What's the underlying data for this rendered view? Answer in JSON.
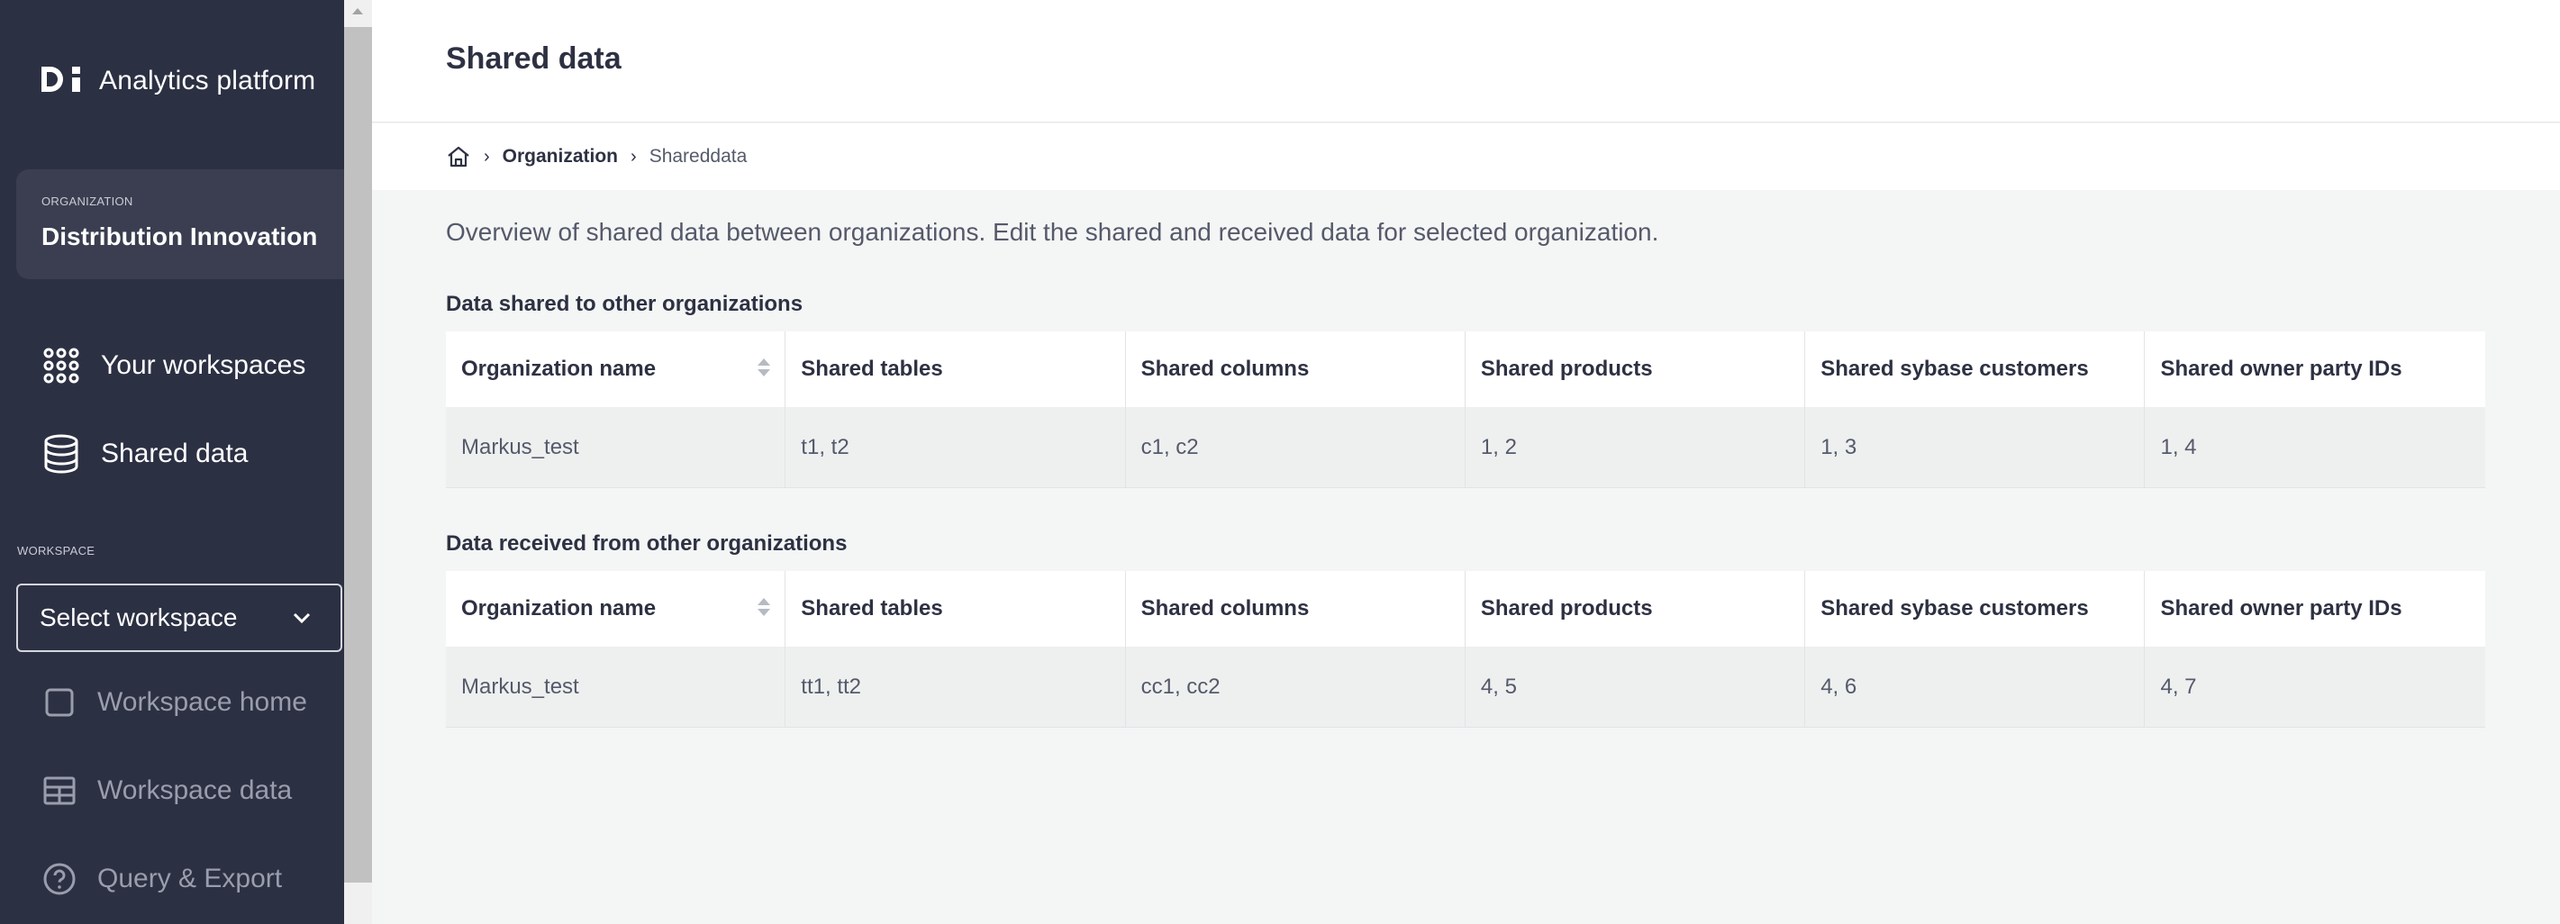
{
  "sidebar": {
    "brand": "Analytics platform",
    "org_caption": "ORGANIZATION",
    "org_name": "Distribution Innovation",
    "nav": [
      {
        "label": "Your workspaces",
        "icon": "grid-icon"
      },
      {
        "label": "Shared data",
        "icon": "database-icon"
      }
    ],
    "workspace_caption": "WORKSPACE",
    "workspace_select": "Select workspace",
    "workspace_nav": [
      {
        "label": "Workspace home",
        "icon": "square-icon"
      },
      {
        "label": "Workspace data",
        "icon": "table-icon"
      },
      {
        "label": "Query & Export",
        "icon": "help-circle-icon"
      }
    ]
  },
  "header": {
    "title": "Shared data"
  },
  "breadcrumb": {
    "org": "Organization",
    "current": "Shareddata"
  },
  "intro": "Overview of shared data between organizations. Edit the shared and received data for selected organization.",
  "columns": [
    "Organization name",
    "Shared tables",
    "Shared columns",
    "Shared products",
    "Shared sybase customers",
    "Shared owner party IDs"
  ],
  "shared_section": {
    "title": "Data shared to other organizations",
    "rows": [
      [
        "Markus_test",
        "t1, t2",
        "c1, c2",
        "1, 2",
        "1, 3",
        "1, 4"
      ]
    ]
  },
  "received_section": {
    "title": "Data received from other organizations",
    "rows": [
      [
        "Markus_test",
        "tt1, tt2",
        "cc1, cc2",
        "4, 5",
        "4, 6",
        "4, 7"
      ]
    ]
  },
  "colors": {
    "sidebar": "#2c3043",
    "accent_card": "#3a3e50",
    "text": "#2d3142"
  }
}
